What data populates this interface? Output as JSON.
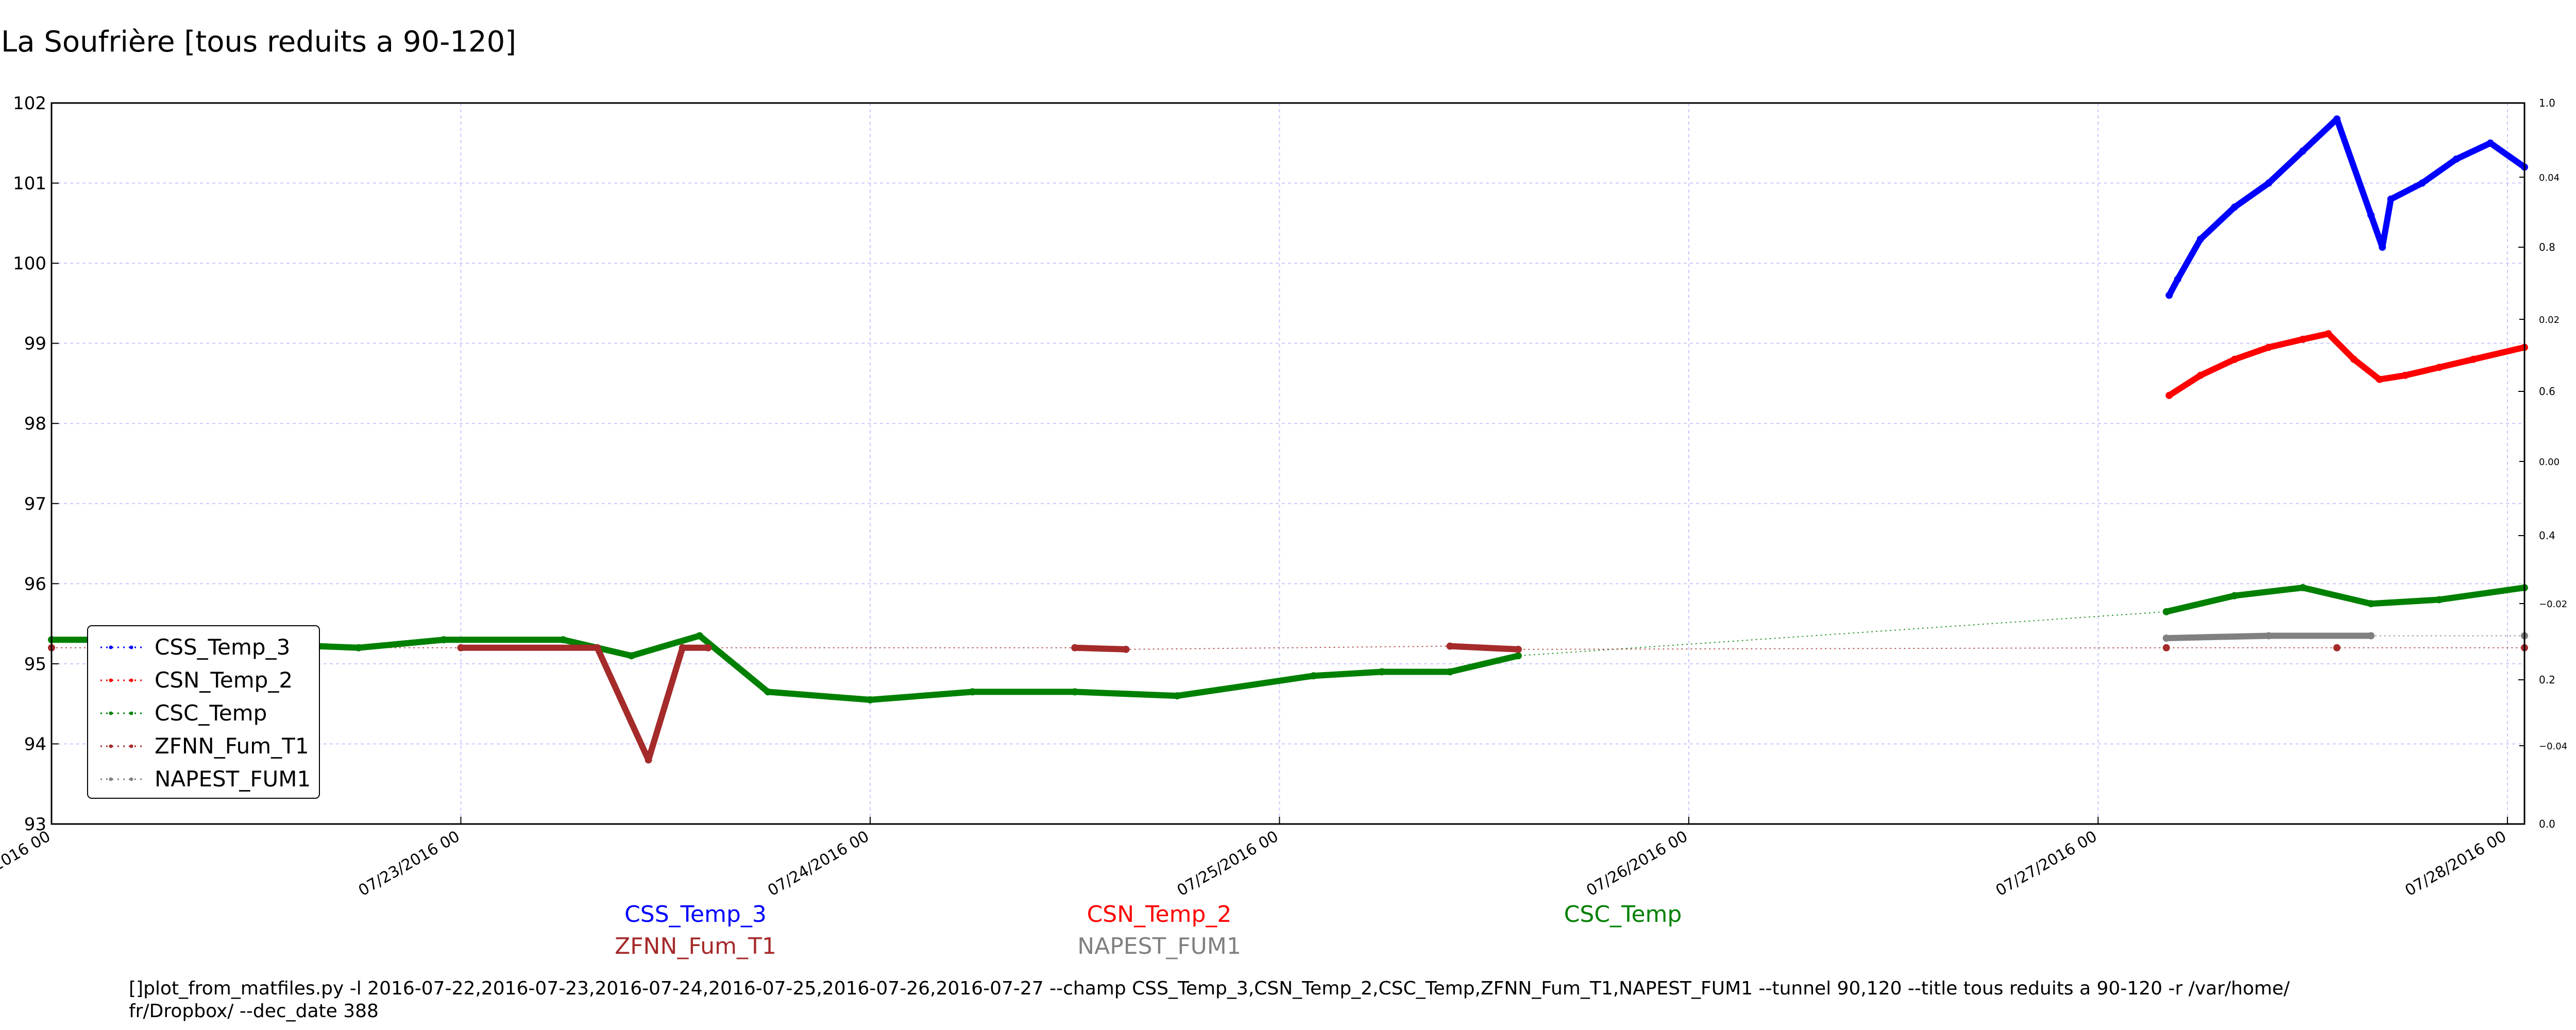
{
  "title": "La Soufrière [tous reduits a 90-120]",
  "command_line": "[]plot_from_matfiles.py -l 2016-07-22,2016-07-23,2016-07-24,2016-07-25,2016-07-26,2016-07-27 --champ CSS_Temp_3,CSN_Temp_2,CSC_Temp,ZFNN_Fum_T1,NAPEST_FUM1 --tunnel 90,120 --title tous reduits a 90-120 -r /var/home/fr/Dropbox/ --dec_date 388",
  "colors": {
    "CSS_Temp_3": "#0000ff",
    "CSN_Temp_2": "#ff0000",
    "CSC_Temp": "#008000",
    "ZFNN_Fum_T1": "#a52a2a",
    "NAPEST_FUM1": "#808080",
    "grid": "#c8c8ff"
  },
  "chart_data": {
    "type": "line",
    "title": "La Soufrière [tous reduits a 90-120]",
    "xlabel": "",
    "ylabel": "",
    "ylim": [
      93,
      102
    ],
    "y_ticks": [
      "93",
      "94",
      "95",
      "96",
      "97",
      "98",
      "99",
      "100",
      "101",
      "102"
    ],
    "x_range": [
      "2016-07-22T00:00",
      "2016-07-28T01:00"
    ],
    "x_ticks": [
      {
        "label": "07/22/2016 00",
        "value": "2016-07-22T00:00"
      },
      {
        "label": "07/23/2016 00",
        "value": "2016-07-23T00:00"
      },
      {
        "label": "07/24/2016 00",
        "value": "2016-07-24T00:00"
      },
      {
        "label": "07/25/2016 00",
        "value": "2016-07-25T00:00"
      },
      {
        "label": "07/26/2016 00",
        "value": "2016-07-26T00:00"
      },
      {
        "label": "07/27/2016 00",
        "value": "2016-07-27T00:00"
      },
      {
        "label": "07/28/2016 00",
        "value": "2016-07-28T00:00"
      }
    ],
    "y2_ticks_odd": [
      "0.0",
      "0.2",
      "0.4",
      "0.6",
      "0.8",
      "1.0"
    ],
    "y2_ticks_even": [
      "−0.04",
      "−0.02",
      "0.00",
      "0.02",
      "0.04"
    ],
    "grid": true,
    "legend_position": "lower-left",
    "legend": [
      "CSS_Temp_3",
      "CSN_Temp_2",
      "CSC_Temp",
      "ZFNN_Fum_T1",
      "NAPEST_FUM1"
    ],
    "series_labels_below": [
      [
        "CSS_Temp_3",
        "CSN_Temp_2",
        "CSC_Temp"
      ],
      [
        "ZFNN_Fum_T1",
        "NAPEST_FUM1"
      ]
    ],
    "series": [
      {
        "name": "CSS_Temp_3",
        "x": [
          "2016-07-27T04:10",
          "2016-07-27T04:40",
          "2016-07-27T06:00",
          "2016-07-27T08:00",
          "2016-07-27T10:00",
          "2016-07-27T12:00",
          "2016-07-27T14:00",
          "2016-07-27T16:00",
          "2016-07-27T16:40",
          "2016-07-27T17:10",
          "2016-07-27T19:00",
          "2016-07-27T21:00",
          "2016-07-27T23:00",
          "2016-07-28T01:00"
        ],
        "y": [
          99.6,
          99.8,
          100.3,
          100.7,
          101.0,
          101.4,
          101.8,
          100.6,
          100.2,
          100.8,
          101.0,
          101.3,
          101.5,
          101.2
        ]
      },
      {
        "name": "CSN_Temp_2",
        "x": [
          "2016-07-27T04:10",
          "2016-07-27T06:00",
          "2016-07-27T08:00",
          "2016-07-27T10:00",
          "2016-07-27T12:00",
          "2016-07-27T13:30",
          "2016-07-27T15:00",
          "2016-07-27T16:30",
          "2016-07-27T18:00",
          "2016-07-27T20:00",
          "2016-07-27T22:00",
          "2016-07-28T01:00"
        ],
        "y": [
          98.35,
          98.6,
          98.8,
          98.95,
          99.05,
          99.12,
          98.8,
          98.55,
          98.6,
          98.7,
          98.8,
          98.95
        ]
      },
      {
        "name": "CSC_Temp",
        "x": [
          "2016-07-22T00:00",
          "2016-07-22T06:00",
          "2016-07-22T12:00",
          "2016-07-22T18:00",
          "2016-07-22T23:00",
          "2016-07-23T06:00",
          "2016-07-23T10:00",
          "2016-07-23T14:00",
          "2016-07-23T18:00",
          "2016-07-24T00:00",
          "2016-07-24T06:00",
          "2016-07-24T12:00",
          "2016-07-24T18:00",
          "2016-07-25T02:00",
          "2016-07-25T06:00",
          "2016-07-25T10:00",
          "2016-07-25T14:00",
          "2016-07-27T04:00",
          "2016-07-27T08:00",
          "2016-07-27T12:00",
          "2016-07-27T16:00",
          "2016-07-27T20:00",
          "2016-07-28T01:00"
        ],
        "y": [
          95.3,
          95.3,
          95.25,
          95.2,
          95.3,
          95.3,
          95.1,
          95.35,
          94.65,
          94.55,
          94.65,
          94.65,
          94.6,
          94.85,
          94.9,
          94.9,
          95.1,
          95.65,
          95.85,
          95.95,
          95.75,
          95.8,
          95.95
        ]
      },
      {
        "name": "ZFNN_Fum_T1",
        "x": [
          "2016-07-22T00:00",
          "2016-07-22T12:00",
          "2016-07-23T00:00",
          "2016-07-23T08:00",
          "2016-07-23T11:00",
          "2016-07-23T13:00",
          "2016-07-23T14:30",
          "2016-07-24T12:00",
          "2016-07-24T15:00",
          "2016-07-25T10:00",
          "2016-07-25T14:00",
          "2016-07-27T04:00",
          "2016-07-27T14:00",
          "2016-07-28T01:00"
        ],
        "y": [
          95.2,
          95.2,
          95.2,
          95.2,
          93.8,
          95.2,
          95.2,
          95.2,
          95.18,
          95.22,
          95.18,
          95.2,
          95.2,
          95.2
        ]
      },
      {
        "name": "NAPEST_FUM1",
        "x": [
          "2016-07-27T04:00",
          "2016-07-27T10:00",
          "2016-07-27T16:00",
          "2016-07-28T01:00"
        ],
        "y": [
          95.32,
          95.35,
          95.35,
          95.35
        ]
      }
    ]
  }
}
